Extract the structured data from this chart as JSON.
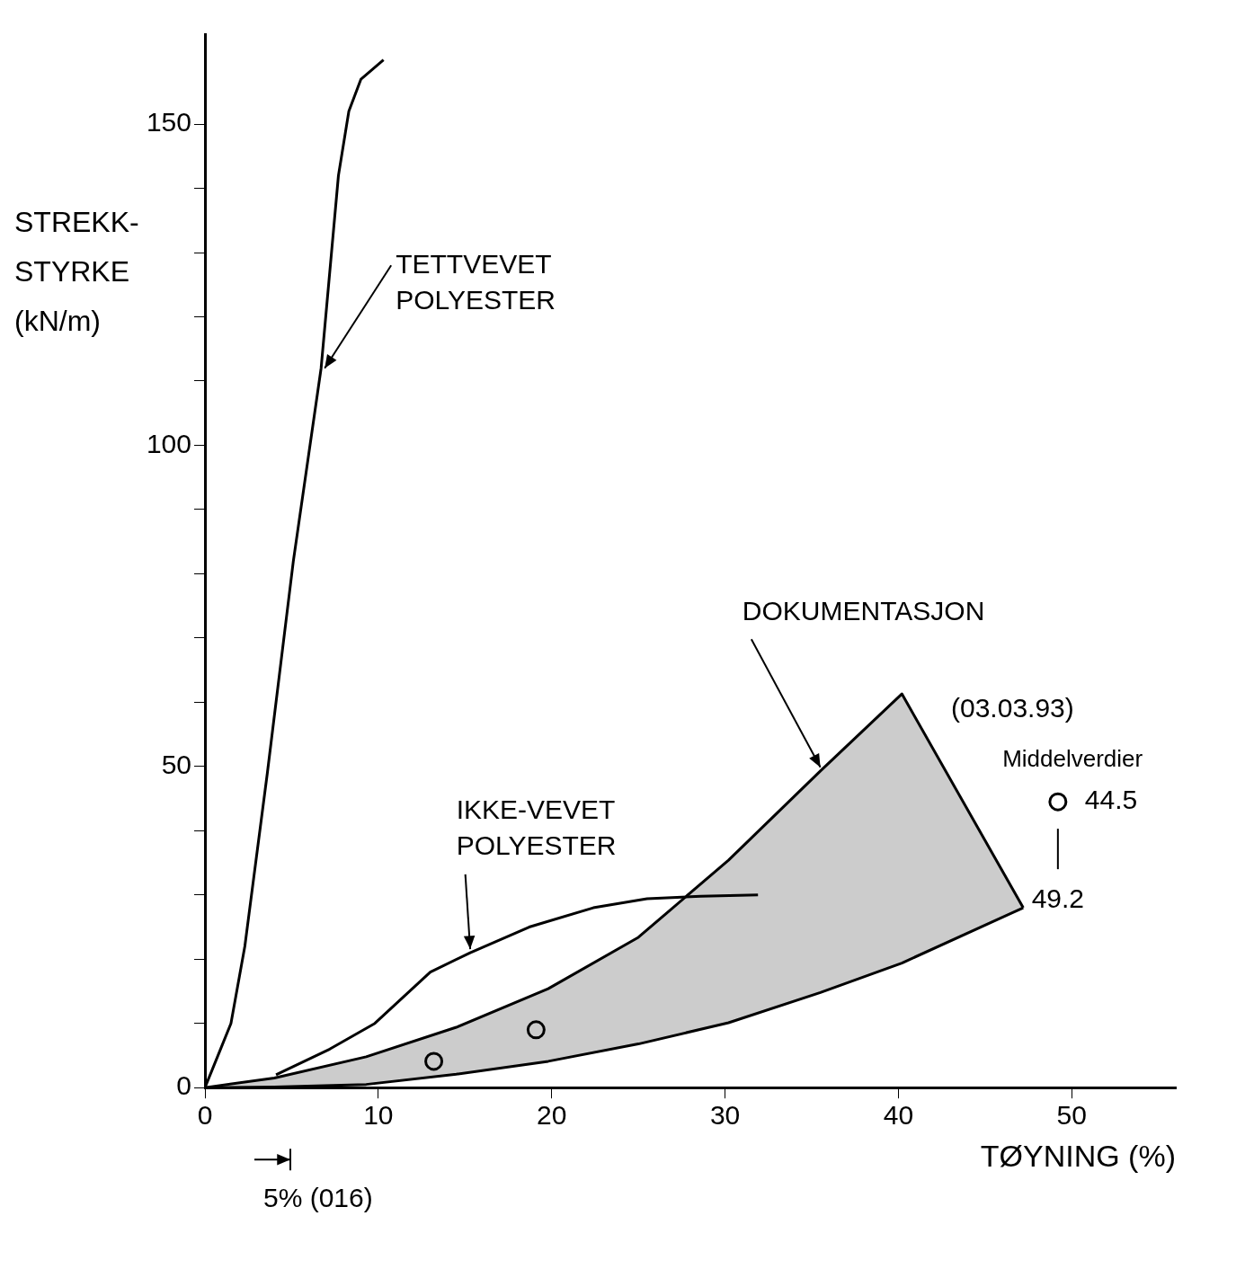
{
  "chart_data": {
    "type": "line",
    "xlabel": "TØYNING (%)",
    "ylabel": "STREKK- STYRKE (kN/m)",
    "xlim": [
      0,
      56
    ],
    "xticks": [
      0,
      10,
      20,
      30,
      40,
      50
    ],
    "ylim": [
      0,
      164
    ],
    "yticks": [
      0,
      {
        "value": 10,
        "label": null
      },
      {
        "value": 20,
        "label": null
      },
      {
        "value": 30,
        "label": null
      },
      {
        "value": 40,
        "label": null
      },
      50,
      {
        "value": 60,
        "label": null
      },
      {
        "value": 70,
        "label": null
      },
      {
        "value": 80,
        "label": null
      },
      {
        "value": 90,
        "label": null
      },
      100,
      {
        "value": 110,
        "label": null
      },
      {
        "value": 120,
        "label": null
      },
      {
        "value": 130,
        "label": null
      },
      {
        "value": 140,
        "label": null
      },
      150
    ],
    "grid": false,
    "legend": false,
    "marker": "none",
    "line_style": "solid",
    "series": [
      {
        "name": "TETTVEVET POLYESTER",
        "type": "line",
        "color": "#000000",
        "x": [
          0,
          0.9,
          1.5,
          2.3,
          3.6,
          5.1,
          6.7,
          7.7,
          8.3,
          9,
          10.3
        ],
        "values": [
          0,
          6,
          10,
          22,
          49,
          82,
          112,
          142,
          152,
          157,
          160
        ]
      },
      {
        "name": "IKKE-VEVET POLYESTER",
        "type": "line",
        "color": "#000000",
        "x": [
          4.1,
          7.2,
          9.8,
          13,
          15.3,
          18.7,
          22.4,
          25.5,
          28.6,
          31.9
        ],
        "values": [
          2,
          6,
          10,
          18,
          21,
          25,
          28,
          29.4,
          29.8,
          30
        ]
      },
      {
        "name": "DOKUMENTASJON",
        "type": "area",
        "color": "#000000",
        "x": [
          0,
          4,
          9.3,
          14.5,
          19.8,
          25,
          30.2,
          35.5,
          40.2,
          47.2
        ],
        "values": [
          0,
          1.5,
          4.8,
          9.4,
          15.4,
          23.4,
          35.4,
          49.3,
          61.3,
          28
        ]
      },
      {
        "type": "line",
        "color": "#000000",
        "x": [
          0,
          4,
          9.3,
          14.5,
          19.8,
          25,
          30.2,
          35.5,
          40.2,
          47.2
        ],
        "values": [
          0,
          0.1,
          0.5,
          2.1,
          4.1,
          6.8,
          10.1,
          14.8,
          19.4,
          28
        ]
      },
      {
        "type": "scatter",
        "color": "#000000",
        "marker": "circle",
        "x": [
          13.2,
          19.1
        ],
        "values": [
          4.1,
          9.0
        ]
      },
      {
        "name": "Middelverdier",
        "type": "scatter",
        "color": "#000000",
        "marker": "circle",
        "x": [
          49.2
        ],
        "values": [
          44.5
        ]
      }
    ],
    "annotations": [
      "44.5",
      "49.2",
      "5% (016)",
      "(03.03.93)"
    ]
  }
}
